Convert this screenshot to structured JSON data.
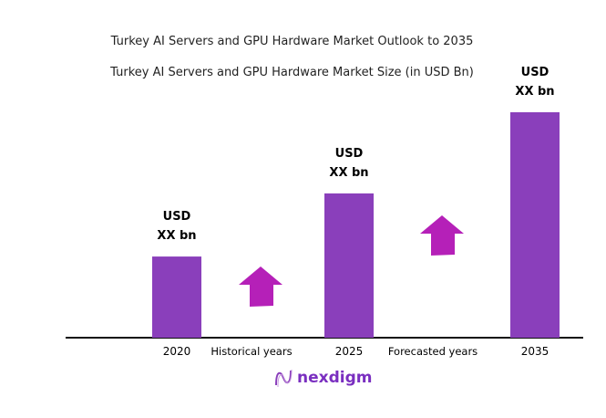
{
  "chart_data": {
    "type": "bar",
    "title": "Turkey AI Servers and GPU Hardware Market Outlook to 2035",
    "subtitle": "Turkey AI Servers and GPU Hardware Market Size (in USD Bn)",
    "categories": [
      "2020",
      "2025",
      "2035"
    ],
    "values": [
      36,
      64,
      100
    ],
    "data_labels": [
      [
        "USD",
        "XX bn"
      ],
      [
        "USD",
        "XX bn"
      ],
      [
        "USD",
        "XX bn"
      ]
    ],
    "annotations": [
      "Historical years",
      "Forecasted years"
    ],
    "grid": false,
    "legend": "none",
    "colors": {
      "bar": "#8a3fbb",
      "arrow": "#b520b8",
      "axis": "#111111"
    }
  },
  "brand": {
    "name": "nexdigm",
    "color": "#7a2fc0"
  }
}
